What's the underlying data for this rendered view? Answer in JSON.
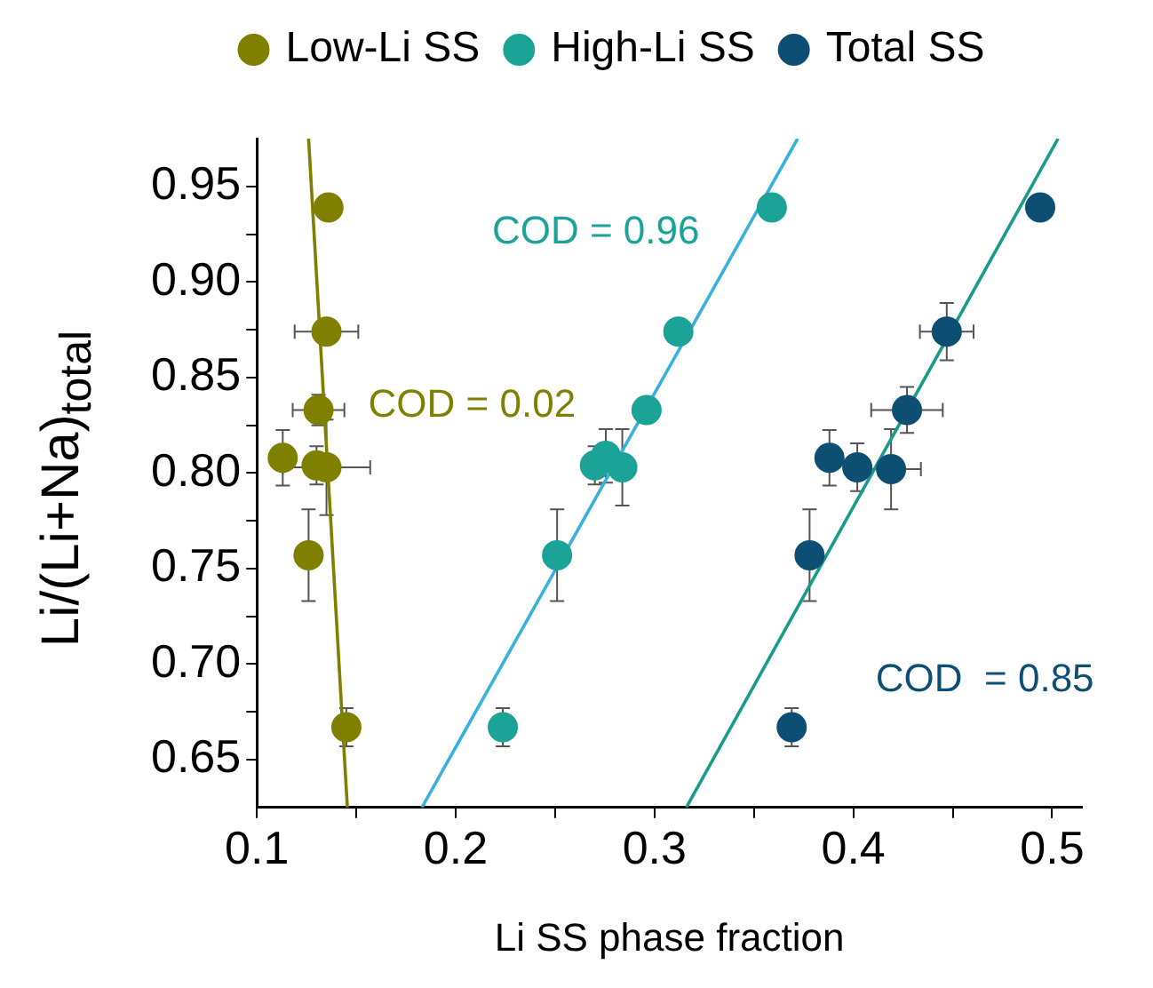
{
  "chart_data": {
    "type": "scatter",
    "xlabel": "Li SS phase fraction",
    "ylabel": "Li/(Li+Na)$_{total}$",
    "xlim": [
      0.1,
      0.515
    ],
    "ylim": [
      0.625,
      0.975
    ],
    "xticks": [
      0.1,
      {
        "value": 0.15,
        "label": null
      },
      0.2,
      {
        "value": 0.25,
        "label": null
      },
      0.3,
      {
        "value": 0.35,
        "label": null
      },
      0.4,
      {
        "value": 0.45,
        "label": null
      },
      0.5
    ],
    "yticks": [
      {
        "value": 0.65,
        "label": "0.65"
      },
      {
        "value": 0.675,
        "label": null
      },
      {
        "value": 0.7,
        "label": "0.70"
      },
      {
        "value": 0.725,
        "label": null
      },
      {
        "value": 0.75,
        "label": "0.75"
      },
      {
        "value": 0.775,
        "label": null
      },
      {
        "value": 0.8,
        "label": "0.80"
      },
      {
        "value": 0.825,
        "label": null
      },
      {
        "value": 0.85,
        "label": "0.85"
      },
      {
        "value": 0.875,
        "label": null
      },
      {
        "value": 0.9,
        "label": "0.90"
      },
      {
        "value": 0.925,
        "label": null
      },
      {
        "value": 0.95,
        "label": "0.95"
      }
    ],
    "grid": false,
    "legend": "top",
    "marker": "circle",
    "series": [
      {
        "name": "Low-Li SS",
        "color": "#808000",
        "x": [
          0.136,
          0.135,
          0.131,
          0.113,
          0.135,
          0.13,
          0.126,
          0.145
        ],
        "values": [
          0.939,
          0.874,
          0.833,
          0.808,
          0.803,
          0.804,
          0.757,
          0.667
        ],
        "errors": [
          null,
          null,
          0.008,
          0.0145,
          0.025,
          0.01,
          0.024,
          0.01
        ],
        "xerrors": [
          null,
          0.016,
          0.013,
          null,
          0.022,
          null,
          null,
          null
        ]
      },
      {
        "name": "High-Li SS",
        "color": "#1aa396",
        "x": [
          0.359,
          0.312,
          0.296,
          0.2755,
          0.27,
          0.2838,
          0.251,
          0.2237
        ],
        "values": [
          0.939,
          0.874,
          0.833,
          0.809,
          0.804,
          0.803,
          0.757,
          0.667
        ],
        "errors": [
          null,
          null,
          null,
          0.014,
          0.01,
          0.02,
          0.024,
          0.01
        ]
      },
      {
        "name": "Total SS",
        "color": "#0d4f73",
        "x": [
          0.494,
          0.447,
          0.427,
          0.388,
          0.402,
          0.419,
          0.378,
          0.369
        ],
        "values": [
          0.939,
          0.874,
          0.833,
          0.808,
          0.803,
          0.802,
          0.757,
          0.667
        ],
        "errors": [
          null,
          0.015,
          0.012,
          0.0145,
          0.0125,
          0.021,
          0.024,
          0.01
        ],
        "xerrors": [
          null,
          0.0135,
          0.018,
          null,
          null,
          0.015,
          null,
          null
        ]
      },
      {
        "type": "line",
        "color": "#808000",
        "x": [
          0.126,
          0.1455
        ],
        "values": [
          0.975,
          0.625
        ],
        "marker": "none"
      },
      {
        "type": "line",
        "color": "#3ab0dd",
        "x": [
          0.183,
          0.372
        ],
        "values": [
          0.625,
          0.975
        ],
        "marker": "none"
      },
      {
        "type": "line",
        "color": "#1a9a8a",
        "x": [
          0.316,
          0.503
        ],
        "values": [
          0.625,
          0.975
        ],
        "marker": "none"
      }
    ],
    "annotations": [
      "COD = 0.02",
      "COD = 0.96",
      "COD  = 0.85"
    ]
  }
}
